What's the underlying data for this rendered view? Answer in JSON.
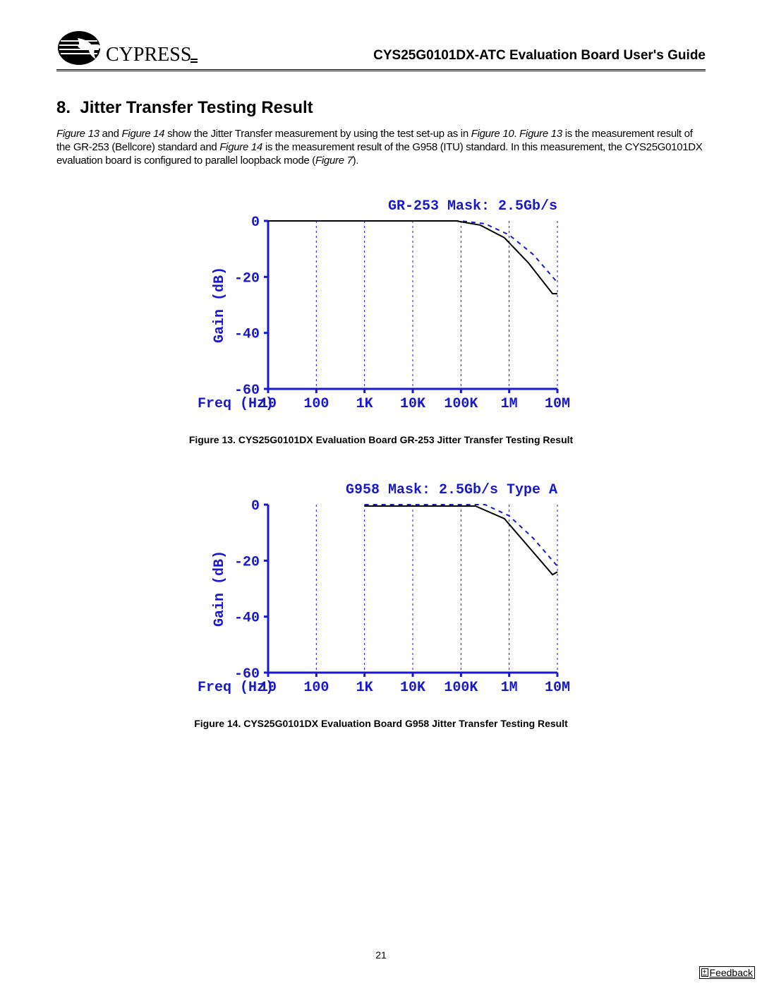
{
  "header": {
    "logo_text": "CYPRESS",
    "title": "CYS25G0101DX-ATC Evaluation Board User's Guide"
  },
  "section": {
    "number": "8.",
    "title": "Jitter Transfer Testing Result"
  },
  "paragraph": {
    "p1a": "Figure 13",
    "p1b": " and ",
    "p1c": "Figure 14",
    "p1d": " show the Jitter Transfer measurement by using the test set-up as in ",
    "p1e": "Figure 10",
    "p1f": ". ",
    "p1g": "Figure 13",
    "p1h": " is the measurement result of the GR-253 (Bellcore) standard and ",
    "p1i": "Figure 14",
    "p1j": " is the measurement result of the G958 (ITU) standard. In this measurement, the CYS25G0101DX evaluation board is configured to parallel loopback mode (",
    "p1k": "Figure 7",
    "p1l": ")."
  },
  "figure13": {
    "caption": "Figure 13. CYS25G0101DX Evaluation Board GR-253 Jitter Transfer Testing Result",
    "chart": {
      "type": "line",
      "title": "GR-253 Mask: 2.5Gb/s",
      "x_axis_label": "Freq (Hz)",
      "y_axis_label": "Gain (dB)",
      "x_ticks": [
        "10",
        "100",
        "1K",
        "10K",
        "100K",
        "1M",
        "10M"
      ],
      "y_ticks": [
        "0",
        "-20",
        "-40",
        "-60"
      ],
      "ylim": [
        -60,
        0
      ],
      "xlim_log10": [
        1,
        7
      ],
      "axis_color": "#1818cc",
      "grid_color": "#1818cc",
      "background_color": "#ffffff",
      "series": [
        {
          "name": "mask",
          "color": "#1818cc",
          "width": 2,
          "dash": "6,6",
          "points_logx_y": [
            [
              1.0,
              0
            ],
            [
              5.0,
              0
            ],
            [
              5.5,
              -1
            ],
            [
              6.0,
              -5
            ],
            [
              6.5,
              -12
            ],
            [
              7.0,
              -22
            ]
          ]
        },
        {
          "name": "measured",
          "color": "#000000",
          "width": 2,
          "dash": "",
          "points_logx_y": [
            [
              1.0,
              0
            ],
            [
              4.9,
              0
            ],
            [
              5.4,
              -1.5
            ],
            [
              5.9,
              -6
            ],
            [
              6.4,
              -15
            ],
            [
              6.9,
              -26
            ],
            [
              7.0,
              -26
            ]
          ]
        }
      ]
    }
  },
  "figure14": {
    "caption": "Figure 14. CYS25G0101DX Evaluation Board G958 Jitter Transfer Testing Result",
    "chart": {
      "type": "line",
      "title": "G958 Mask: 2.5Gb/s  Type A",
      "x_axis_label": "Freq (Hz)",
      "y_axis_label": "Gain (dB)",
      "x_ticks": [
        "10",
        "100",
        "1K",
        "10K",
        "100K",
        "1M",
        "10M"
      ],
      "y_ticks": [
        "0",
        "-20",
        "-40",
        "-60"
      ],
      "ylim": [
        -60,
        0
      ],
      "xlim_log10": [
        1,
        7
      ],
      "axis_color": "#1818cc",
      "grid_color": "#1818cc",
      "background_color": "#ffffff",
      "series": [
        {
          "name": "mask",
          "color": "#1818cc",
          "width": 2,
          "dash": "6,6",
          "points_logx_y": [
            [
              3.0,
              0
            ],
            [
              5.5,
              0
            ],
            [
              6.0,
              -4
            ],
            [
              6.5,
              -12
            ],
            [
              7.0,
              -22
            ]
          ]
        },
        {
          "name": "measured",
          "color": "#000000",
          "width": 2,
          "dash": "",
          "points_logx_y": [
            [
              3.0,
              -0.5
            ],
            [
              5.3,
              -0.5
            ],
            [
              5.9,
              -5
            ],
            [
              6.4,
              -15
            ],
            [
              6.9,
              -25
            ],
            [
              7.0,
              -24
            ]
          ]
        }
      ]
    }
  },
  "page_number": "21",
  "feedback": {
    "plus": "+",
    "label": "Feedback"
  }
}
